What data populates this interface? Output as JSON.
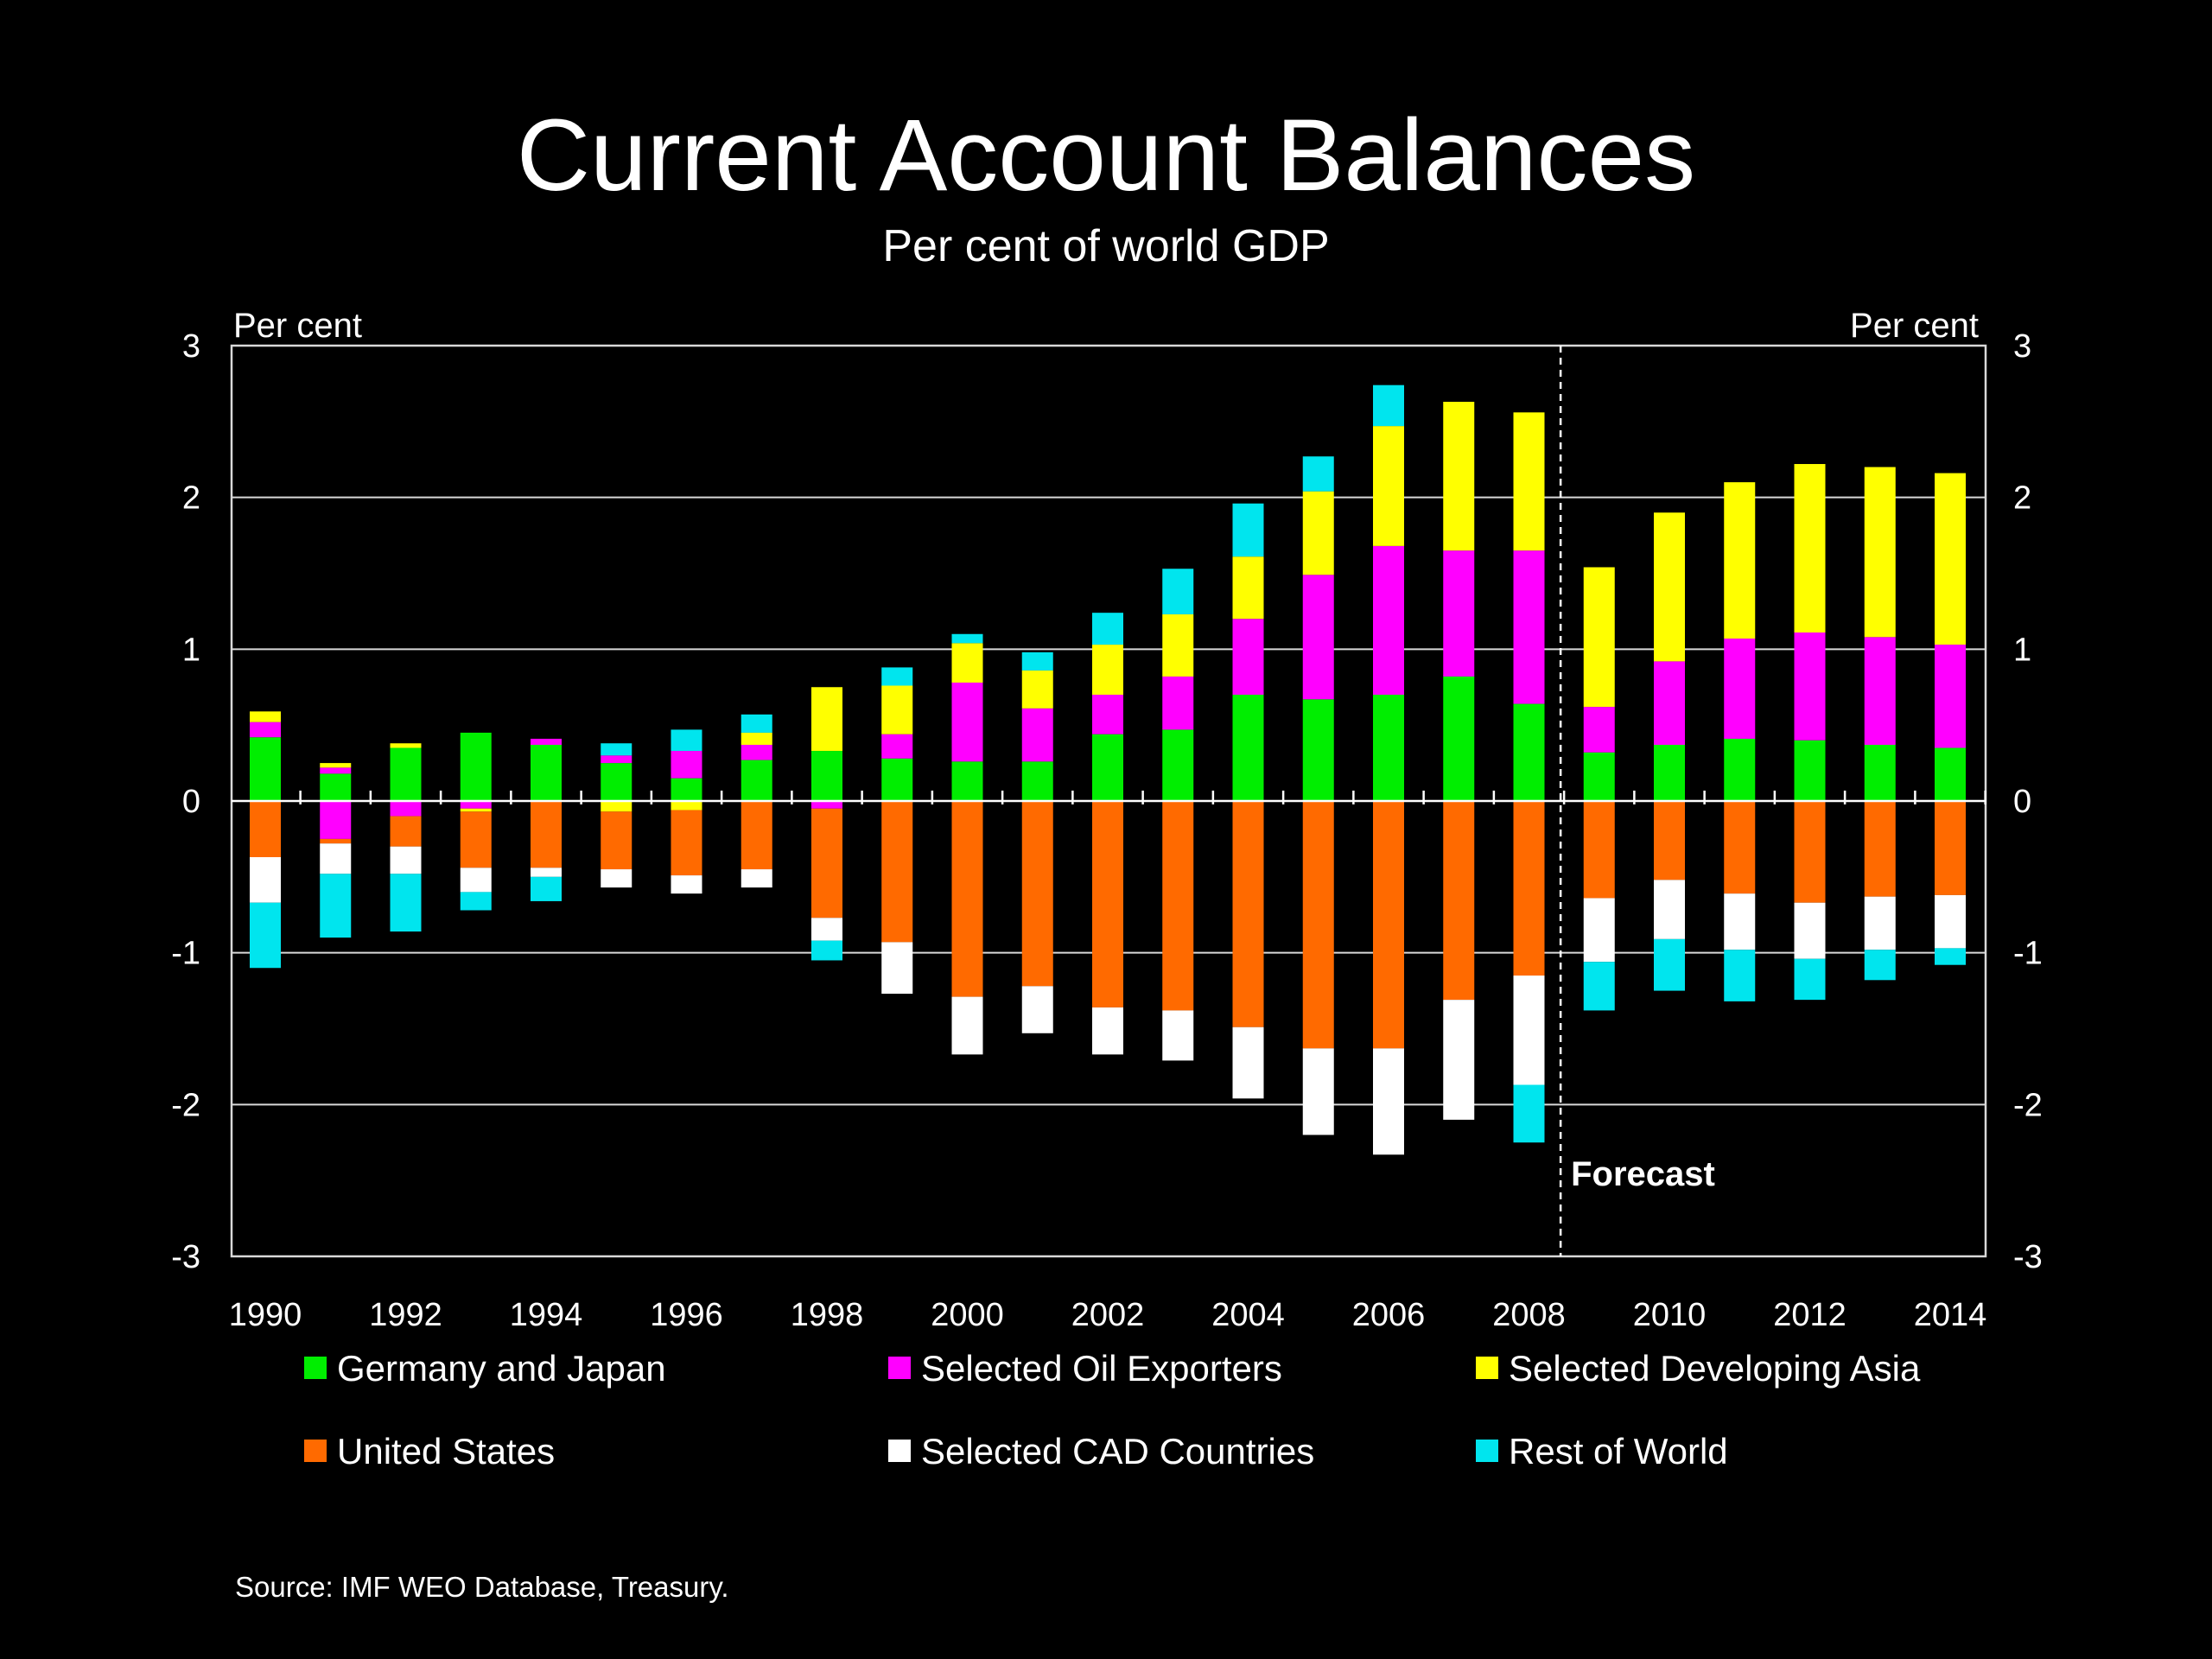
{
  "chart_data": {
    "type": "bar",
    "stacked": true,
    "title": "Current Account Balances",
    "subtitle": "Per cent of world GDP",
    "ylabel_left": "Per cent",
    "ylabel_right": "Per cent",
    "ylim": [
      -3,
      3
    ],
    "yticks": [
      3,
      2,
      1,
      0,
      -1,
      -2,
      -3
    ],
    "grid": true,
    "forecast_label": "Forecast",
    "forecast_start_after": 2008,
    "x": [
      1990,
      1991,
      1992,
      1993,
      1994,
      1995,
      1996,
      1997,
      1998,
      1999,
      2000,
      2001,
      2002,
      2003,
      2004,
      2005,
      2006,
      2007,
      2008,
      2009,
      2010,
      2011,
      2012,
      2013,
      2014
    ],
    "xtick_labels": [
      "1990",
      "1992",
      "1994",
      "1996",
      "1998",
      "2000",
      "2002",
      "2004",
      "2006",
      "2008",
      "2010",
      "2012",
      "2014"
    ],
    "positive_series": [
      {
        "name": "Germany and Japan",
        "color": "#00ee00",
        "values": [
          0.42,
          0.18,
          0.35,
          0.45,
          0.37,
          0.25,
          0.15,
          0.27,
          0.33,
          0.28,
          0.26,
          0.26,
          0.44,
          0.47,
          0.7,
          0.67,
          0.7,
          0.82,
          0.64,
          0.32,
          0.37,
          0.41,
          0.4,
          0.37,
          0.35
        ]
      },
      {
        "name": "Selected Oil Exporters",
        "color": "#ff00ff",
        "values": [
          0.1,
          0.04,
          0.0,
          0.0,
          0.04,
          0.05,
          0.18,
          0.1,
          0.0,
          0.16,
          0.52,
          0.35,
          0.26,
          0.35,
          0.5,
          0.82,
          0.98,
          0.83,
          1.01,
          0.3,
          0.55,
          0.66,
          0.71,
          0.71,
          0.68
        ]
      },
      {
        "name": "Selected Developing Asia",
        "color": "#ffff00",
        "values": [
          0.07,
          0.03,
          0.03,
          0.0,
          0.0,
          0.0,
          0.0,
          0.08,
          0.42,
          0.32,
          0.26,
          0.25,
          0.33,
          0.41,
          0.41,
          0.55,
          0.79,
          0.98,
          0.91,
          0.92,
          0.98,
          1.03,
          1.11,
          1.12,
          1.13
        ]
      },
      {
        "name": "Rest of World",
        "color": "#00e5ee",
        "values": [
          0.0,
          0.0,
          0.0,
          0.0,
          0.0,
          0.08,
          0.14,
          0.12,
          0.0,
          0.12,
          0.06,
          0.12,
          0.21,
          0.3,
          0.35,
          0.23,
          0.27,
          0.0,
          0.0,
          0.0,
          0.0,
          0.0,
          0.0,
          0.0,
          0.0
        ]
      }
    ],
    "negative_series": [
      {
        "name": "Selected Oil Exporters",
        "color": "#ff00ff",
        "values": [
          0.0,
          -0.25,
          -0.1,
          -0.05,
          0.0,
          0.0,
          0.0,
          0.0,
          -0.05,
          0.0,
          0.0,
          0.0,
          0.0,
          0.0,
          0.0,
          0.0,
          0.0,
          0.0,
          0.0,
          0.0,
          0.0,
          0.0,
          0.0,
          0.0,
          0.0
        ]
      },
      {
        "name": "Selected Developing Asia",
        "color": "#ffff00",
        "values": [
          0.0,
          0.0,
          0.0,
          -0.02,
          0.0,
          -0.07,
          -0.06,
          0.0,
          0.0,
          0.0,
          0.0,
          0.0,
          0.0,
          0.0,
          0.0,
          0.0,
          0.0,
          0.0,
          0.0,
          0.0,
          0.0,
          0.0,
          0.0,
          0.0,
          0.0
        ]
      },
      {
        "name": "United States",
        "color": "#ff6a00",
        "values": [
          -0.37,
          -0.03,
          -0.2,
          -0.37,
          -0.44,
          -0.38,
          -0.43,
          -0.45,
          -0.72,
          -0.93,
          -1.29,
          -1.22,
          -1.36,
          -1.38,
          -1.49,
          -1.63,
          -1.63,
          -1.31,
          -1.15,
          -0.64,
          -0.52,
          -0.61,
          -0.67,
          -0.63,
          -0.62
        ]
      },
      {
        "name": "Selected CAD Countries",
        "color": "#ffffff",
        "values": [
          -0.3,
          -0.2,
          -0.18,
          -0.16,
          -0.06,
          -0.12,
          -0.12,
          -0.12,
          -0.15,
          -0.34,
          -0.38,
          -0.31,
          -0.31,
          -0.33,
          -0.47,
          -0.57,
          -0.7,
          -0.79,
          -0.72,
          -0.42,
          -0.39,
          -0.37,
          -0.37,
          -0.35,
          -0.35
        ]
      },
      {
        "name": "Rest of World",
        "color": "#00e5ee",
        "values": [
          -0.43,
          -0.42,
          -0.38,
          -0.12,
          -0.16,
          0.0,
          0.0,
          0.0,
          -0.13,
          0.0,
          0.0,
          0.0,
          0.0,
          0.0,
          0.0,
          0.0,
          0.0,
          0.0,
          -0.38,
          -0.32,
          -0.34,
          -0.34,
          -0.27,
          -0.2,
          -0.11
        ]
      }
    ],
    "legend": [
      {
        "name": "Germany and Japan",
        "color": "#00ee00"
      },
      {
        "name": "Selected Oil Exporters",
        "color": "#ff00ff"
      },
      {
        "name": "Selected Developing Asia",
        "color": "#ffff00"
      },
      {
        "name": "United States",
        "color": "#ff6a00"
      },
      {
        "name": "Selected CAD Countries",
        "color": "#ffffff"
      },
      {
        "name": "Rest of World",
        "color": "#00e5ee"
      }
    ],
    "legend_placement": "bottom"
  },
  "source": "Source: IMF WEO Database, Treasury."
}
